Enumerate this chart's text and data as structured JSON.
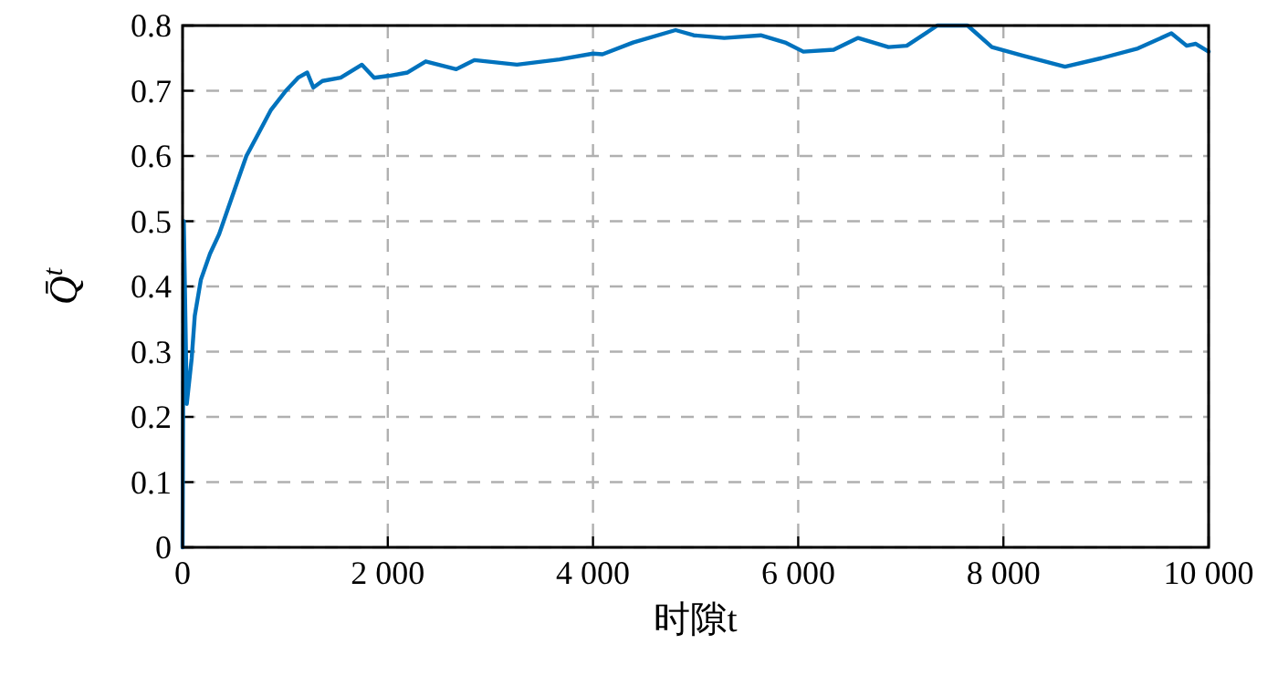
{
  "chart_data": {
    "type": "line",
    "xlabel": "时隙t",
    "ylabel": "Q̄$^{t}$",
    "xlim": [
      0,
      10000
    ],
    "ylim": [
      0,
      0.8
    ],
    "xticks": [
      0,
      {
        "value": 2000,
        "label": "2 000"
      },
      {
        "value": 4000,
        "label": "4 000"
      },
      {
        "value": 6000,
        "label": "6 000"
      },
      {
        "value": 8000,
        "label": "8 000"
      },
      {
        "value": 10000,
        "label": "10 000"
      }
    ],
    "yticks": [
      0,
      0.1,
      0.2,
      0.3,
      0.4,
      0.5,
      0.6,
      0.7,
      0.8
    ],
    "grid": true,
    "series": [
      {
        "color": "#0072bd",
        "x": [
          0,
          12,
          41,
          89,
          119,
          178,
          267,
          356,
          444,
          533,
          622,
          741,
          859,
          1007,
          1126,
          1215,
          1274,
          1363,
          1541,
          1748,
          1867,
          2015,
          2193,
          2370,
          2667,
          2844,
          3259,
          3674,
          4000,
          4093,
          4390,
          4805,
          4982,
          5279,
          5635,
          5872,
          6050,
          6346,
          6584,
          6880,
          7058,
          7355,
          7651,
          7888,
          8185,
          8600,
          8955,
          9311,
          9637,
          9786,
          9875,
          10000
        ],
        "values": [
          0,
          0.5,
          0.22,
          0.29,
          0.355,
          0.41,
          0.45,
          0.48,
          0.52,
          0.56,
          0.6,
          0.635,
          0.67,
          0.7,
          0.72,
          0.728,
          0.705,
          0.715,
          0.72,
          0.74,
          0.72,
          0.723,
          0.728,
          0.745,
          0.733,
          0.747,
          0.74,
          0.748,
          0.757,
          0.756,
          0.774,
          0.793,
          0.785,
          0.781,
          0.785,
          0.774,
          0.76,
          0.763,
          0.781,
          0.767,
          0.769,
          0.8,
          0.8,
          0.767,
          0.754,
          0.737,
          0.75,
          0.765,
          0.788,
          0.769,
          0.772,
          0.76
        ]
      }
    ]
  }
}
